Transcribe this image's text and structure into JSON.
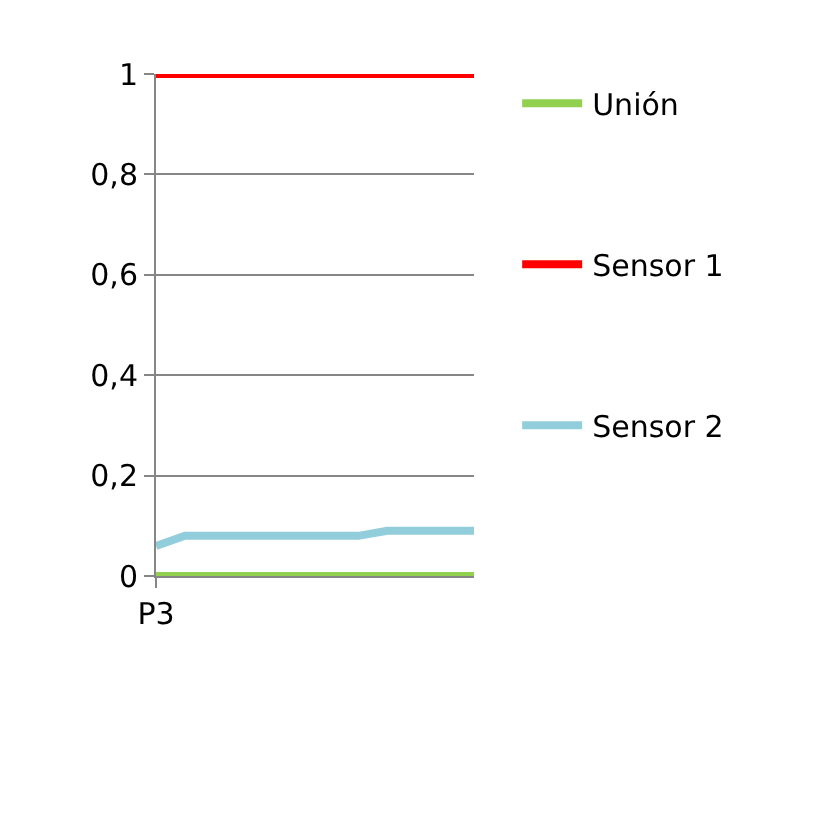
{
  "chart_data": {
    "type": "line",
    "categories": [
      "P3",
      null,
      null,
      null,
      null,
      null,
      null,
      null,
      null,
      null,
      null,
      null
    ],
    "series": [
      {
        "name": "Unión",
        "color": "#92d050",
        "values": [
          0,
          0,
          0,
          0,
          0,
          0,
          0,
          0,
          0,
          0,
          0,
          0
        ]
      },
      {
        "name": "Sensor 1",
        "color": "#ff0000",
        "values": [
          1,
          1,
          1,
          1,
          1,
          1,
          1,
          1,
          1,
          1,
          1,
          1
        ]
      },
      {
        "name": "Sensor 2",
        "color": "#92cddc",
        "values": [
          0.06,
          0.08,
          0.08,
          0.08,
          0.08,
          0.08,
          0.08,
          0.08,
          0.09,
          0.09,
          0.09,
          0.09
        ]
      }
    ],
    "ylim": [
      0,
      1
    ],
    "yticks": [
      {
        "value": 0,
        "label": "0"
      },
      {
        "value": 0.2,
        "label": "0,2"
      },
      {
        "value": 0.4,
        "label": "0,4"
      },
      {
        "value": 0.6,
        "label": "0,6"
      },
      {
        "value": 0.8,
        "label": "0,8"
      },
      {
        "value": 1,
        "label": "1"
      }
    ],
    "grid": "y",
    "legend": "right",
    "marker": "none",
    "line_style": "solid"
  }
}
